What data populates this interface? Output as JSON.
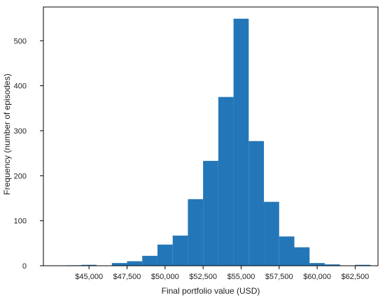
{
  "chart_data": {
    "type": "bar",
    "title": "",
    "xlabel": "Final portfolio value (USD)",
    "ylabel": "Frequency (number of episodes)",
    "bar_color": "#2377b8",
    "bin_edges": [
      43500,
      44500,
      45500,
      46500,
      47500,
      48500,
      49500,
      50500,
      51500,
      52500,
      53500,
      54500,
      55500,
      56500,
      57500,
      58500,
      59500,
      60500,
      61500,
      62500,
      63500
    ],
    "values": [
      1,
      2,
      0,
      6,
      10,
      22,
      47,
      67,
      148,
      233,
      375,
      549,
      277,
      142,
      65,
      41,
      6,
      3,
      0,
      2
    ],
    "xlim": [
      42000,
      64000
    ],
    "ylim": [
      0,
      575
    ],
    "x_ticks": [
      45000,
      47500,
      50000,
      52500,
      55000,
      57500,
      60000,
      62500
    ],
    "x_tick_labels": [
      "$45,000",
      "$47,500",
      "$50,000",
      "$52,500",
      "$55,000",
      "$57,500",
      "$60,000",
      "$62,500"
    ],
    "y_ticks": [
      0,
      100,
      200,
      300,
      400,
      500
    ],
    "y_tick_labels": [
      "0",
      "100",
      "200",
      "300",
      "400",
      "500"
    ],
    "grid": false,
    "legend": "none"
  }
}
